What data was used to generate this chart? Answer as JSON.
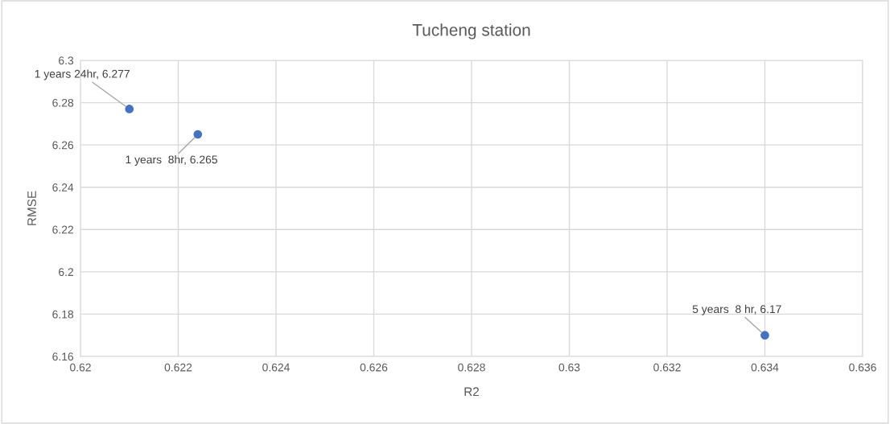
{
  "chart_data": {
    "type": "scatter",
    "title": "Tucheng station",
    "xlabel": "R2",
    "ylabel": "RMSE",
    "x": [
      0.621,
      0.6224,
      0.634
    ],
    "values": [
      6.277,
      6.265,
      6.17
    ],
    "color": "#4472c4",
    "marker": "circle",
    "xlim": [
      0.62,
      0.636
    ],
    "xticks": [
      0.62,
      0.622,
      0.624,
      0.626,
      0.628,
      0.63,
      0.632,
      0.634,
      0.636
    ],
    "ylim": [
      6.16,
      6.3
    ],
    "yticks": [
      6.16,
      6.18,
      6.2,
      6.22,
      6.24,
      6.26,
      6.28,
      6.3
    ],
    "grid": true,
    "annotations": [
      {
        "text": "1 years 24hr, 6.277",
        "x": 0.621,
        "y": 6.277
      },
      {
        "text": "1 years  8hr, 6.265",
        "x": 0.6224,
        "y": 6.265
      },
      {
        "text": "5 years  8 hr, 6.17",
        "x": 0.634,
        "y": 6.17
      }
    ]
  }
}
